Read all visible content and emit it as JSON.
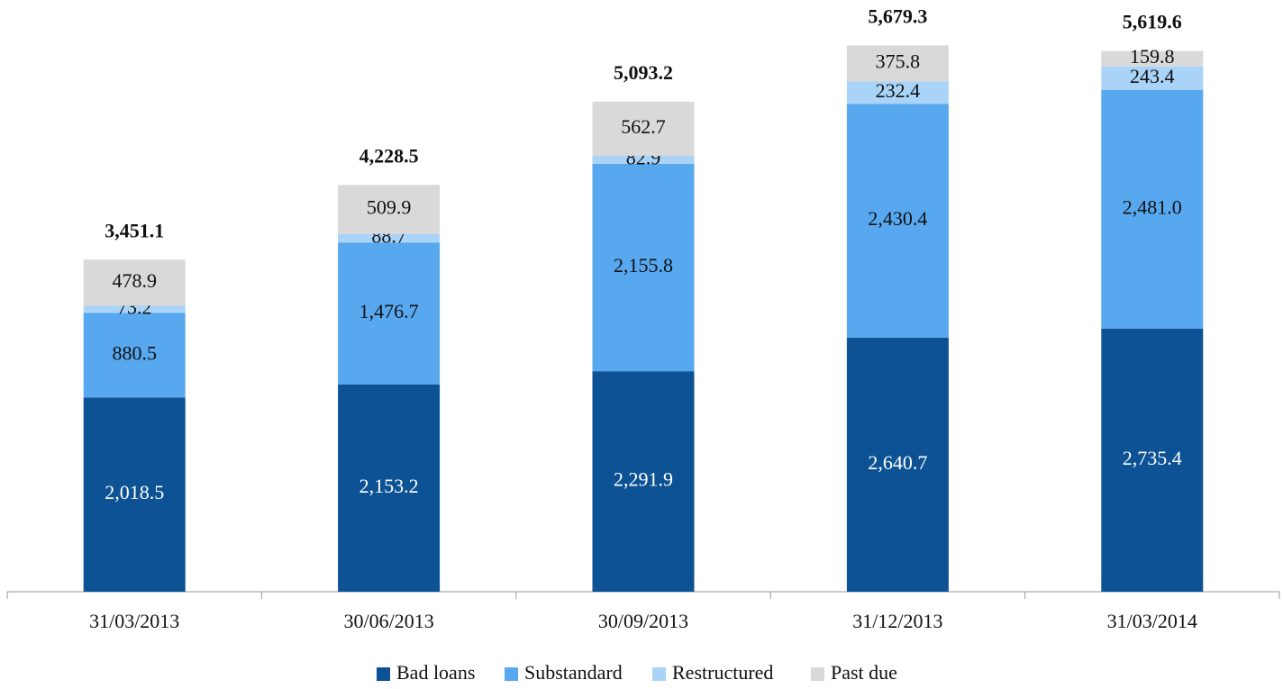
{
  "chart_data": {
    "type": "stacked_bar",
    "categories": [
      "31/03/2013",
      "30/06/2013",
      "30/09/2013",
      "31/12/2013",
      "31/03/2014"
    ],
    "series": [
      {
        "name": "Bad loans",
        "color": "#0d5294",
        "values": [
          2018.5,
          2153.2,
          2291.9,
          2640.7,
          2735.4
        ],
        "value_labels": [
          "2,018.5",
          "2,153.2",
          "2,291.9",
          "2,640.7",
          "2,735.4"
        ]
      },
      {
        "name": "Substandard",
        "color": "#58a8f0",
        "values": [
          880.5,
          1476.7,
          2155.8,
          2430.4,
          2481.0
        ],
        "value_labels": [
          "880.5",
          "1,476.7",
          "2,155.8",
          "2,430.4",
          "2,481.0"
        ]
      },
      {
        "name": "Restructured",
        "color": "#a9d3f7",
        "values": [
          73.2,
          88.7,
          82.9,
          232.4,
          243.4
        ],
        "value_labels": [
          "73.2",
          "88.7",
          "82.9",
          "232.4",
          "243.4"
        ]
      },
      {
        "name": "Past due",
        "color": "#d9d9d9",
        "values": [
          478.9,
          509.9,
          562.7,
          375.8,
          159.8
        ],
        "value_labels": [
          "478.9",
          "509.9",
          "562.7",
          "375.8",
          "159.8"
        ]
      }
    ],
    "totals": [
      3451.1,
      4228.5,
      5093.2,
      5679.3,
      5619.6
    ],
    "total_labels": [
      "3,451.1",
      "4,228.5",
      "5,093.2",
      "5,679.3",
      "5,619.6"
    ],
    "ylim": [
      0,
      6150
    ],
    "legend": "bottom"
  }
}
